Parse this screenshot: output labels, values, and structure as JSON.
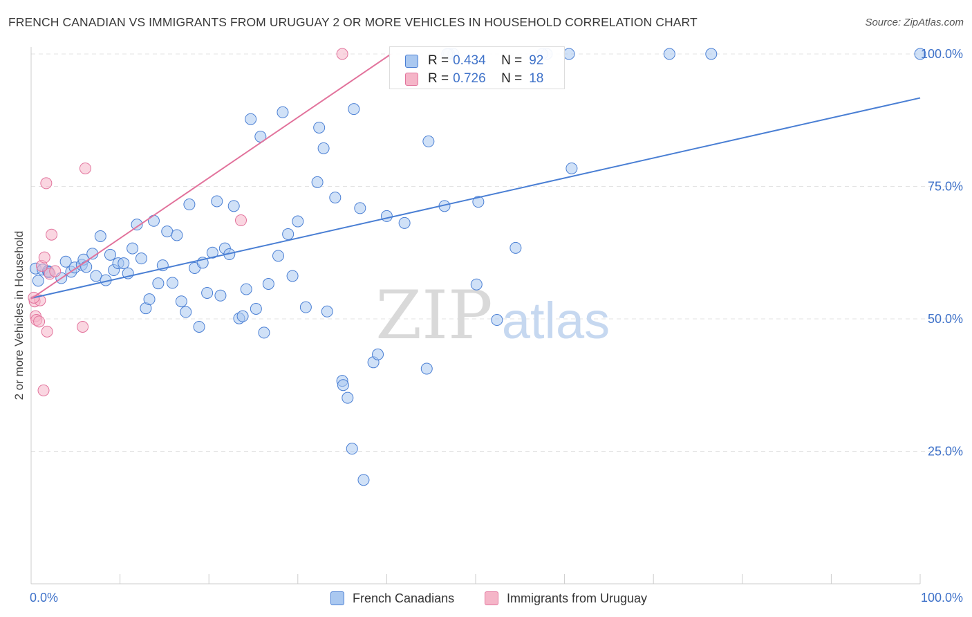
{
  "title": "FRENCH CANADIAN VS IMMIGRANTS FROM URUGUAY 2 OR MORE VEHICLES IN HOUSEHOLD CORRELATION CHART",
  "source": "Source: ZipAtlas.com",
  "watermark": {
    "zip": "ZIP",
    "atlas": "atlas"
  },
  "colors": {
    "blue": "#4a7fd4",
    "blue_fill": "#aac8f0",
    "pink": "#e2739c",
    "pink_fill": "#f5b5c8",
    "axis_label": "#3f72c9"
  },
  "legend_top": {
    "rows": [
      {
        "r_label": "R = ",
        "r_value": "0.434",
        "n_label": "N = ",
        "n_value": "92"
      },
      {
        "r_label": "R = ",
        "r_value": "0.726",
        "n_label": "N = ",
        "n_value": "18"
      }
    ]
  },
  "legend_bottom": {
    "items": [
      "French Canadians",
      "Immigrants from Uruguay"
    ]
  },
  "chart_data": {
    "type": "scatter",
    "title": "FRENCH CANADIAN VS IMMIGRANTS FROM URUGUAY 2 OR MORE VEHICLES IN HOUSEHOLD CORRELATION CHART",
    "xlabel": "",
    "ylabel": "2 or more Vehicles in Household",
    "xlim": [
      0,
      100
    ],
    "ylim": [
      0,
      100
    ],
    "x_ticks": [
      "0.0%",
      "100.0%"
    ],
    "y_ticks": [
      "25.0%",
      "50.0%",
      "75.0%",
      "100.0%"
    ],
    "grid": "horizontal dashed",
    "legend_position": "top-center",
    "series": [
      {
        "name": "French Canadians",
        "r": 0.434,
        "n": 92,
        "trend": {
          "x": [
            0,
            100
          ],
          "y": [
            53.9,
            91.7
          ]
        },
        "points": [
          [
            0.5,
            59.5
          ],
          [
            0.8,
            57.2
          ],
          [
            1.3,
            59.3
          ],
          [
            1.9,
            59.0
          ],
          [
            2.0,
            58.8
          ],
          [
            3.4,
            57.7
          ],
          [
            3.9,
            60.8
          ],
          [
            4.5,
            58.9
          ],
          [
            4.9,
            59.7
          ],
          [
            5.7,
            60.2
          ],
          [
            5.9,
            61.2
          ],
          [
            6.2,
            59.8
          ],
          [
            6.9,
            62.3
          ],
          [
            7.3,
            58.1
          ],
          [
            7.8,
            65.6
          ],
          [
            8.4,
            57.3
          ],
          [
            8.9,
            62.1
          ],
          [
            9.3,
            59.2
          ],
          [
            9.8,
            60.5
          ],
          [
            10.4,
            60.5
          ],
          [
            10.9,
            58.6
          ],
          [
            11.4,
            63.3
          ],
          [
            11.9,
            67.8
          ],
          [
            12.4,
            61.4
          ],
          [
            12.9,
            52.0
          ],
          [
            13.3,
            53.7
          ],
          [
            13.8,
            68.5
          ],
          [
            14.3,
            56.7
          ],
          [
            14.8,
            60.1
          ],
          [
            15.3,
            66.5
          ],
          [
            15.9,
            56.8
          ],
          [
            16.4,
            65.8
          ],
          [
            16.9,
            53.3
          ],
          [
            17.4,
            51.3
          ],
          [
            17.8,
            71.6
          ],
          [
            18.4,
            59.6
          ],
          [
            18.9,
            48.5
          ],
          [
            19.3,
            60.6
          ],
          [
            19.8,
            54.9
          ],
          [
            20.4,
            62.5
          ],
          [
            20.9,
            72.2
          ],
          [
            21.3,
            54.4
          ],
          [
            21.8,
            63.3
          ],
          [
            22.3,
            62.2
          ],
          [
            22.8,
            71.3
          ],
          [
            23.4,
            50.1
          ],
          [
            23.8,
            50.5
          ],
          [
            24.2,
            55.6
          ],
          [
            24.7,
            87.7
          ],
          [
            25.3,
            51.9
          ],
          [
            25.8,
            84.4
          ],
          [
            26.2,
            47.4
          ],
          [
            26.7,
            56.6
          ],
          [
            27.8,
            61.9
          ],
          [
            28.3,
            89.0
          ],
          [
            28.9,
            66.0
          ],
          [
            29.4,
            58.1
          ],
          [
            30.0,
            68.4
          ],
          [
            30.9,
            52.2
          ],
          [
            32.2,
            75.8
          ],
          [
            32.4,
            86.1
          ],
          [
            32.9,
            82.2
          ],
          [
            33.3,
            51.4
          ],
          [
            34.2,
            72.9
          ],
          [
            35.0,
            38.3
          ],
          [
            35.1,
            37.5
          ],
          [
            35.6,
            35.1
          ],
          [
            36.1,
            25.5
          ],
          [
            36.3,
            89.6
          ],
          [
            37.0,
            70.9
          ],
          [
            37.4,
            19.6
          ],
          [
            38.5,
            41.8
          ],
          [
            39.0,
            43.3
          ],
          [
            40.0,
            69.4
          ],
          [
            42.0,
            68.1
          ],
          [
            44.7,
            83.5
          ],
          [
            44.5,
            40.6
          ],
          [
            46.5,
            71.3
          ],
          [
            47.5,
            100
          ],
          [
            50.1,
            56.5
          ],
          [
            50.3,
            72.1
          ],
          [
            52.4,
            49.8
          ],
          [
            54.5,
            63.4
          ],
          [
            58.0,
            100
          ],
          [
            60.5,
            100
          ],
          [
            60.8,
            78.4
          ],
          [
            71.8,
            100
          ],
          [
            76.5,
            100
          ],
          [
            100.0,
            100
          ],
          [
            47.0,
            100
          ],
          [
            57.5,
            100
          ],
          [
            46.8,
            100
          ]
        ]
      },
      {
        "name": "Immigrants from Uruguay",
        "r": 0.726,
        "n": 18,
        "trend": {
          "x": [
            0,
            40.5
          ],
          "y": [
            53.8,
            100
          ]
        },
        "points": [
          [
            0.4,
            53.3
          ],
          [
            0.5,
            50.5
          ],
          [
            0.6,
            49.8
          ],
          [
            0.9,
            49.5
          ],
          [
            1.0,
            53.5
          ],
          [
            1.2,
            60.0
          ],
          [
            1.4,
            36.5
          ],
          [
            1.5,
            61.6
          ],
          [
            1.7,
            75.6
          ],
          [
            1.8,
            47.6
          ],
          [
            2.1,
            58.5
          ],
          [
            2.3,
            65.9
          ],
          [
            2.7,
            59.0
          ],
          [
            5.8,
            48.5
          ],
          [
            6.1,
            78.4
          ],
          [
            23.6,
            68.6
          ],
          [
            35.0,
            100
          ],
          [
            0.3,
            54.0
          ]
        ]
      }
    ]
  }
}
